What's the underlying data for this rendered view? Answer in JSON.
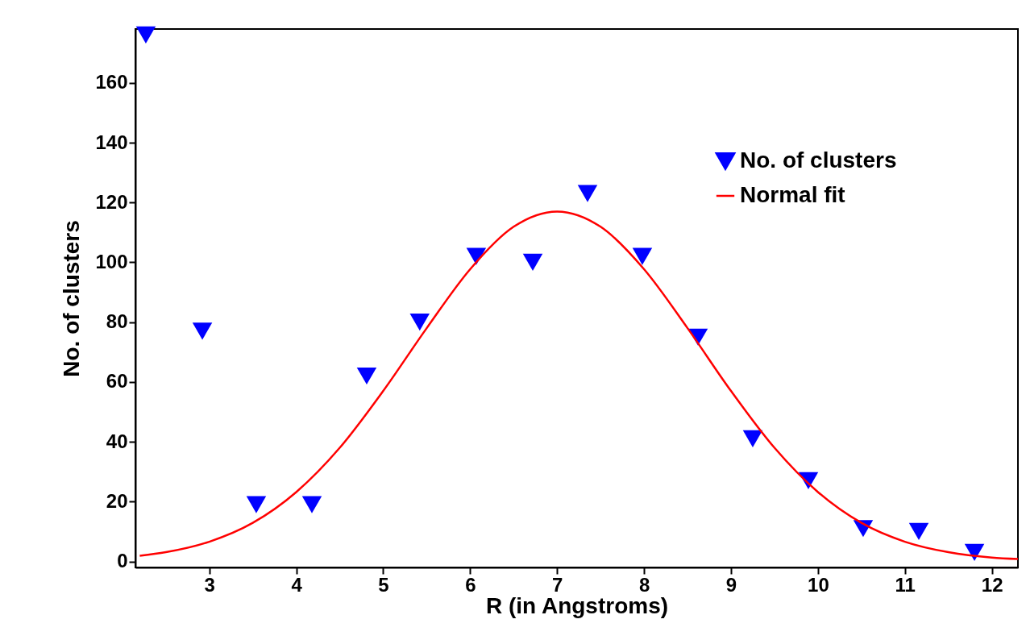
{
  "chart_data": {
    "type": "scatter",
    "xlabel": "R (in Angstroms)",
    "ylabel": "No. of clusters",
    "xlim": [
      2.15,
      12.3
    ],
    "ylim": [
      -2,
      178
    ],
    "xticks": [
      3,
      4,
      5,
      6,
      7,
      8,
      9,
      10,
      11,
      12
    ],
    "yticks": [
      0,
      20,
      40,
      60,
      80,
      100,
      120,
      140,
      160
    ],
    "grid": false,
    "legend": "top right",
    "series": [
      {
        "name": "No. of clusters",
        "marker": "triangle",
        "color": "#0000ff",
        "x": [
          2.27,
          2.92,
          3.54,
          4.18,
          4.81,
          5.42,
          6.07,
          6.72,
          7.35,
          7.98,
          8.62,
          9.25,
          9.89,
          10.52,
          11.16,
          11.8
        ],
        "values": [
          176,
          77,
          19,
          19,
          62,
          80,
          102,
          100,
          123,
          102,
          75,
          41,
          27,
          11,
          10,
          3
        ]
      },
      {
        "name": "Normal fit",
        "type": "line",
        "color": "#ff0000",
        "line_style": "solid",
        "x": [
          2.2,
          2.5,
          3,
          3.5,
          4,
          4.5,
          5,
          5.5,
          6,
          6.5,
          7,
          7.5,
          8,
          8.5,
          9,
          9.5,
          10,
          10.5,
          11,
          11.5,
          12,
          12.3
        ],
        "values": [
          1.9,
          3.1,
          6.6,
          12.9,
          23.2,
          38,
          57,
          78,
          97.7,
          111.9,
          117,
          111.9,
          97.7,
          78,
          57,
          38,
          23.2,
          12.9,
          6.6,
          3.1,
          1.3,
          0.8
        ]
      }
    ]
  }
}
